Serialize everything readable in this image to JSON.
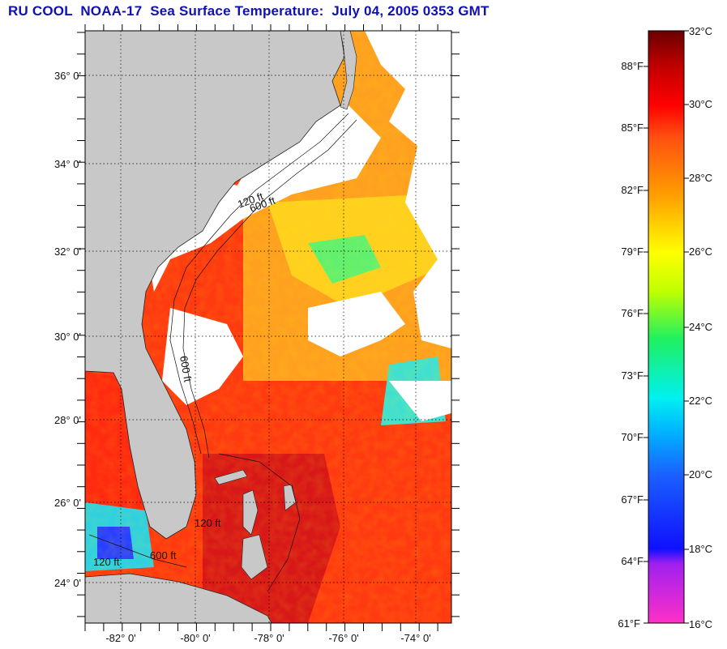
{
  "title": "RU COOL  NOAA-17  Sea Surface Temperature:  July 04, 2005 0353 GMT",
  "map": {
    "lat_labels": [
      "36° 0'",
      "34° 0'",
      "32° 0'",
      "30° 0'",
      "28° 0'",
      "26° 0'",
      "24° 0'"
    ],
    "lon_labels": [
      "-82° 0'",
      "-80° 0'",
      "-78° 0'",
      "-76° 0'",
      "-74° 0'"
    ],
    "contour_labels": [
      "600 ft",
      "120 ft",
      "600 ft",
      "120 ft",
      "600 ft",
      "120 ft"
    ],
    "colors": {
      "land": "#c8c8c8",
      "cloud": "#ffffff",
      "warm_water": "#ff3a10",
      "hot_water": "#d81818"
    }
  },
  "colorbar": {
    "celsius_labels": [
      "32°C",
      "30°C",
      "28°C",
      "26°C",
      "24°C",
      "22°C",
      "20°C",
      "18°C",
      "16°C"
    ],
    "fahrenheit_labels": [
      "88°F",
      "85°F",
      "82°F",
      "79°F",
      "76°F",
      "73°F",
      "70°F",
      "67°F",
      "64°F",
      "61°F"
    ],
    "range_c": [
      16,
      32
    ],
    "gradient": [
      "#ff30c8",
      "#a020f0",
      "#1010ff",
      "#00a0ff",
      "#00f0f0",
      "#20f060",
      "#c0ff00",
      "#ffff00",
      "#ffa000",
      "#ff5010",
      "#ff0000",
      "#a00000",
      "#6a0000"
    ]
  }
}
